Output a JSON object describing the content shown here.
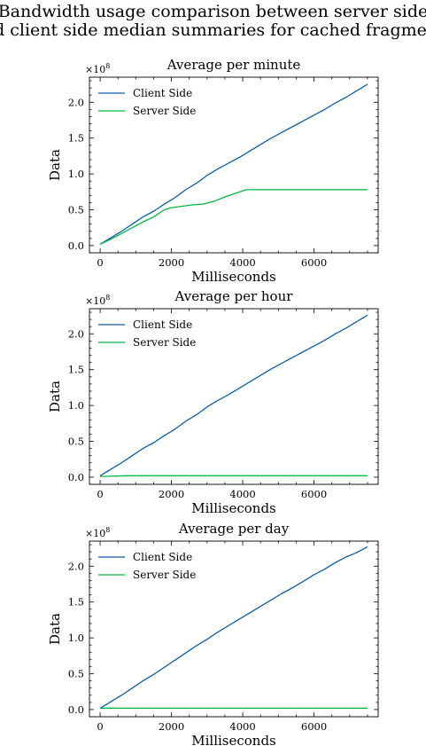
{
  "figure": {
    "suptitle_line1": "Bandwidth usage comparison between server side",
    "suptitle_line2": "and client side median summaries for cached fragments",
    "offset_label": "×10",
    "offset_exponent": "8"
  },
  "colors": {
    "client": "#0C5DA5",
    "server": "#00B945"
  },
  "chart_data": [
    {
      "type": "line",
      "title": "Average per minute",
      "xlabel": "Milliseconds",
      "ylabel": "Data",
      "xlim": [
        -300,
        7800
      ],
      "ylim": [
        -0.1,
        2.35
      ],
      "xticks": [
        0,
        2000,
        4000,
        6000
      ],
      "yticks": [
        0.0,
        0.5,
        1.0,
        1.5,
        2.0
      ],
      "y_multiplier": "1e8",
      "legend_position": "top-left",
      "series": [
        {
          "name": "Client Side",
          "x": [
            0,
            300,
            600,
            900,
            1200,
            1500,
            1800,
            2100,
            2400,
            2700,
            3000,
            3300,
            3600,
            3900,
            4200,
            4500,
            4800,
            5100,
            5400,
            5700,
            6000,
            6300,
            6600,
            6900,
            7200,
            7500
          ],
          "y": [
            0.02,
            0.11,
            0.2,
            0.3,
            0.4,
            0.48,
            0.58,
            0.67,
            0.78,
            0.87,
            0.98,
            1.07,
            1.15,
            1.23,
            1.32,
            1.41,
            1.5,
            1.58,
            1.66,
            1.74,
            1.82,
            1.9,
            1.99,
            2.07,
            2.16,
            2.25
          ]
        },
        {
          "name": "Server Side",
          "x": [
            0,
            300,
            600,
            900,
            1200,
            1500,
            1800,
            2000,
            2300,
            2600,
            2900,
            3200,
            3500,
            3800,
            4100,
            4500,
            5000,
            6000,
            7000,
            7500
          ],
          "y": [
            0.02,
            0.09,
            0.17,
            0.25,
            0.33,
            0.4,
            0.5,
            0.53,
            0.55,
            0.57,
            0.58,
            0.62,
            0.68,
            0.73,
            0.78,
            0.78,
            0.78,
            0.78,
            0.78,
            0.78
          ]
        }
      ]
    },
    {
      "type": "line",
      "title": "Average per hour",
      "xlabel": "Milliseconds",
      "ylabel": "Data",
      "xlim": [
        -300,
        7800
      ],
      "ylim": [
        -0.1,
        2.35
      ],
      "xticks": [
        0,
        2000,
        4000,
        6000
      ],
      "yticks": [
        0.0,
        0.5,
        1.0,
        1.5,
        2.0
      ],
      "y_multiplier": "1e8",
      "legend_position": "top-left",
      "series": [
        {
          "name": "Client Side",
          "x": [
            0,
            300,
            600,
            900,
            1200,
            1500,
            1800,
            2100,
            2400,
            2700,
            3000,
            3300,
            3600,
            3900,
            4200,
            4500,
            4800,
            5100,
            5400,
            5700,
            6000,
            6300,
            6600,
            6900,
            7200,
            7500
          ],
          "y": [
            0.02,
            0.11,
            0.2,
            0.3,
            0.4,
            0.48,
            0.58,
            0.67,
            0.78,
            0.87,
            0.98,
            1.07,
            1.15,
            1.24,
            1.33,
            1.42,
            1.51,
            1.59,
            1.67,
            1.75,
            1.83,
            1.91,
            2.0,
            2.08,
            2.17,
            2.26
          ]
        },
        {
          "name": "Server Side",
          "x": [
            0,
            400,
            800,
            1500,
            3000,
            4500,
            6000,
            7500
          ],
          "y": [
            0.01,
            0.015,
            0.02,
            0.02,
            0.02,
            0.02,
            0.02,
            0.02
          ]
        }
      ]
    },
    {
      "type": "line",
      "title": "Average per day",
      "xlabel": "Milliseconds",
      "ylabel": "Data",
      "xlim": [
        -300,
        7800
      ],
      "ylim": [
        -0.1,
        2.35
      ],
      "xticks": [
        0,
        2000,
        4000,
        6000
      ],
      "yticks": [
        0.0,
        0.5,
        1.0,
        1.5,
        2.0
      ],
      "y_multiplier": "1e8",
      "legend_position": "top-left",
      "series": [
        {
          "name": "Client Side",
          "x": [
            0,
            300,
            600,
            900,
            1200,
            1500,
            1800,
            2100,
            2400,
            2700,
            3000,
            3300,
            3600,
            3900,
            4200,
            4500,
            4800,
            5100,
            5400,
            5700,
            6000,
            6300,
            6600,
            6900,
            7200,
            7500
          ],
          "y": [
            0.02,
            0.11,
            0.2,
            0.3,
            0.4,
            0.49,
            0.59,
            0.69,
            0.79,
            0.89,
            0.98,
            1.08,
            1.17,
            1.26,
            1.35,
            1.44,
            1.53,
            1.62,
            1.7,
            1.79,
            1.88,
            1.96,
            2.05,
            2.13,
            2.19,
            2.27
          ]
        },
        {
          "name": "Server Side",
          "x": [
            0,
            500,
            1500,
            3000,
            4500,
            6000,
            7500
          ],
          "y": [
            0.02,
            0.02,
            0.02,
            0.02,
            0.02,
            0.02,
            0.02
          ]
        }
      ]
    }
  ]
}
